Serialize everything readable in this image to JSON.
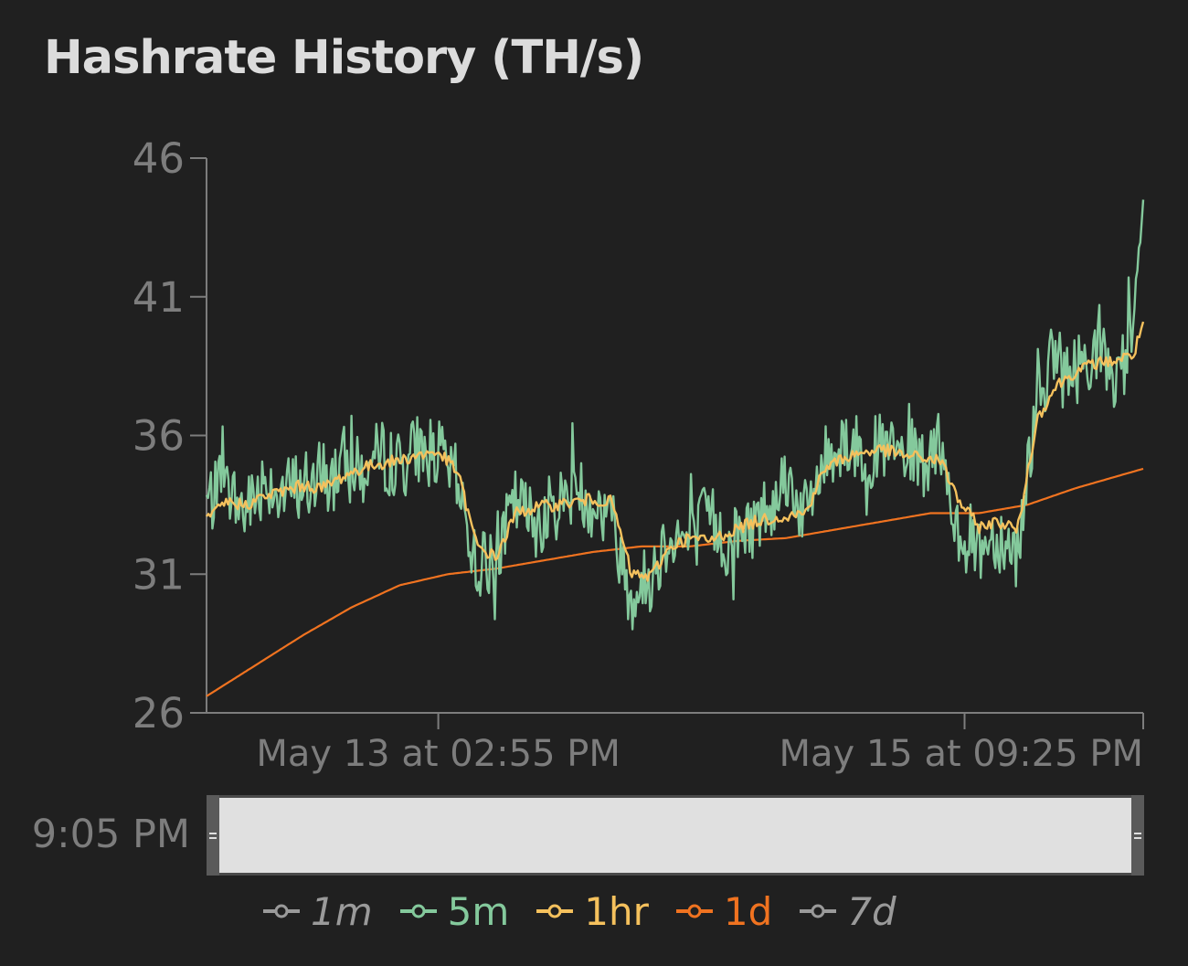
{
  "title": "Hashrate History (TH/s)",
  "range_selector": {
    "start_label": "9:05 PM"
  },
  "legend": [
    {
      "label": "1m",
      "color": "#9a9a9a",
      "visible": false
    },
    {
      "label": "5m",
      "color": "#84c99c",
      "visible": true
    },
    {
      "label": "1hr",
      "color": "#f5c15d",
      "visible": true
    },
    {
      "label": "1d",
      "color": "#f07320",
      "visible": true
    },
    {
      "label": "7d",
      "color": "#9a9a9a",
      "visible": false
    }
  ],
  "chart_data": {
    "type": "line",
    "title": "Hashrate History (TH/s)",
    "xlabel": "",
    "ylabel": "",
    "x_unit": "hours",
    "xlim": [
      0,
      97
    ],
    "ylim": [
      26,
      46
    ],
    "yticks": [
      26,
      31,
      36,
      41,
      46
    ],
    "xticks": [
      {
        "x": 24,
        "label": "May 13 at 02:55 PM"
      },
      {
        "x": 78.5,
        "label": "May 15 at 09:25 PM"
      }
    ],
    "grid": false,
    "legend_position": "bottom",
    "series": [
      {
        "name": "5m",
        "color": "#84c99c",
        "x": [
          0,
          2,
          4,
          6,
          8,
          10,
          12,
          14,
          16,
          18,
          20,
          22,
          24,
          26,
          28,
          30,
          32,
          34,
          36,
          38,
          40,
          42,
          44,
          46,
          48,
          50,
          52,
          54,
          56,
          58,
          60,
          62,
          64,
          66,
          68,
          70,
          72,
          74,
          76,
          78,
          80,
          82,
          84,
          86,
          88,
          89,
          90,
          92,
          94,
          96,
          97
        ],
        "values": [
          33.6,
          34.1,
          33.2,
          34.5,
          33.9,
          34.4,
          33.8,
          35.1,
          34.6,
          35.3,
          34.9,
          35.6,
          35.3,
          34.3,
          31.2,
          31.6,
          33.6,
          32.9,
          33.4,
          34.1,
          33.6,
          32.9,
          30.2,
          30.9,
          32.6,
          32.1,
          33.2,
          31.9,
          32.6,
          33.4,
          34.6,
          33.1,
          35.1,
          35.9,
          35.3,
          35.5,
          35.2,
          34.9,
          35.1,
          32.5,
          32.0,
          32.4,
          31.8,
          37.5,
          38.9,
          38.0,
          38.4,
          39.1,
          38.1,
          39.4,
          44.5
        ]
      },
      {
        "name": "1hr",
        "color": "#f5c15d",
        "x": [
          0,
          2,
          4,
          6,
          8,
          10,
          12,
          14,
          16,
          18,
          20,
          22,
          24,
          26,
          28,
          30,
          32,
          34,
          36,
          38,
          40,
          42,
          44,
          46,
          48,
          50,
          52,
          54,
          56,
          58,
          60,
          62,
          64,
          66,
          68,
          70,
          72,
          74,
          76,
          78,
          80,
          82,
          84,
          86,
          88,
          90,
          92,
          94,
          96,
          97
        ],
        "values": [
          32.9,
          33.6,
          33.5,
          33.8,
          34.0,
          34.2,
          34.1,
          34.5,
          34.8,
          35.0,
          35.1,
          35.3,
          35.4,
          34.7,
          32.0,
          31.6,
          33.2,
          33.4,
          33.5,
          33.6,
          33.7,
          33.6,
          31.0,
          30.9,
          32.0,
          32.3,
          32.2,
          32.5,
          32.8,
          33.0,
          33.1,
          33.2,
          34.8,
          35.2,
          35.4,
          35.5,
          35.3,
          35.2,
          35.1,
          33.6,
          32.7,
          32.9,
          32.6,
          36.6,
          37.8,
          38.3,
          38.6,
          38.7,
          38.9,
          40.1
        ]
      },
      {
        "name": "1d",
        "color": "#f07320",
        "x": [
          0,
          5,
          10,
          15,
          20,
          25,
          30,
          35,
          40,
          45,
          50,
          55,
          60,
          65,
          70,
          75,
          80,
          85,
          90,
          97
        ],
        "values": [
          26.6,
          27.7,
          28.8,
          29.8,
          30.6,
          31.0,
          31.2,
          31.5,
          31.8,
          32.0,
          32.0,
          32.2,
          32.3,
          32.6,
          32.9,
          33.2,
          33.2,
          33.5,
          34.1,
          34.8
        ]
      }
    ]
  }
}
